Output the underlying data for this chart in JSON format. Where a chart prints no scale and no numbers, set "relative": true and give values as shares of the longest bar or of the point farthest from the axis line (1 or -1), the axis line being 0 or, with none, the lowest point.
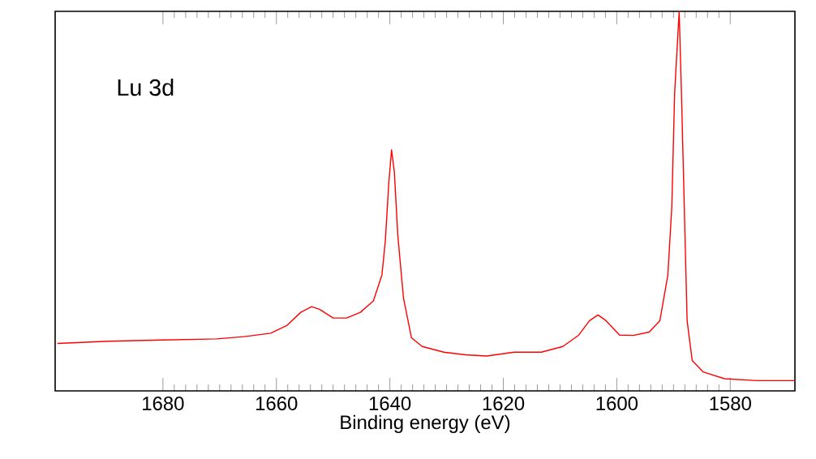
{
  "chart_data": {
    "type": "line",
    "xlabel": "Binding energy (eV)",
    "annotations": [
      "Lu 3d"
    ],
    "relative": true,
    "marker": "none",
    "line_style": "solid",
    "xlim": [
      1699,
      1568.6
    ],
    "xticks": [
      1680,
      1660,
      1640,
      1620,
      1600,
      1580
    ],
    "x": [
      1698.6,
      1689.5,
      1680,
      1670.5,
      1665.7,
      1661,
      1658.1,
      1655.7,
      1653.8,
      1652.4,
      1650,
      1647.6,
      1645.2,
      1642.9,
      1641.4,
      1640.8,
      1640.2,
      1639.7,
      1639.2,
      1638.6,
      1637.6,
      1636.2,
      1634.3,
      1630.5,
      1626.7,
      1622.9,
      1618.1,
      1613.3,
      1609.5,
      1606.7,
      1604.8,
      1603.3,
      1601.9,
      1599.5,
      1597.1,
      1594.3,
      1592.4,
      1591,
      1590.3,
      1589.8,
      1589,
      1588.6,
      1588.1,
      1587.6,
      1586.7,
      1584.8,
      1581,
      1575.2,
      1568.6
    ],
    "series": [
      {
        "color": "#ff0000",
        "values": [
          0.125,
          0.131,
          0.134,
          0.137,
          0.143,
          0.152,
          0.173,
          0.207,
          0.222,
          0.215,
          0.192,
          0.192,
          0.207,
          0.237,
          0.305,
          0.395,
          0.545,
          0.635,
          0.575,
          0.41,
          0.245,
          0.14,
          0.117,
          0.102,
          0.095,
          0.092,
          0.102,
          0.102,
          0.117,
          0.147,
          0.185,
          0.2,
          0.185,
          0.147,
          0.146,
          0.155,
          0.185,
          0.305,
          0.485,
          0.785,
          1.0,
          0.785,
          0.485,
          0.185,
          0.08,
          0.05,
          0.032,
          0.027,
          0.027
        ]
      }
    ]
  }
}
